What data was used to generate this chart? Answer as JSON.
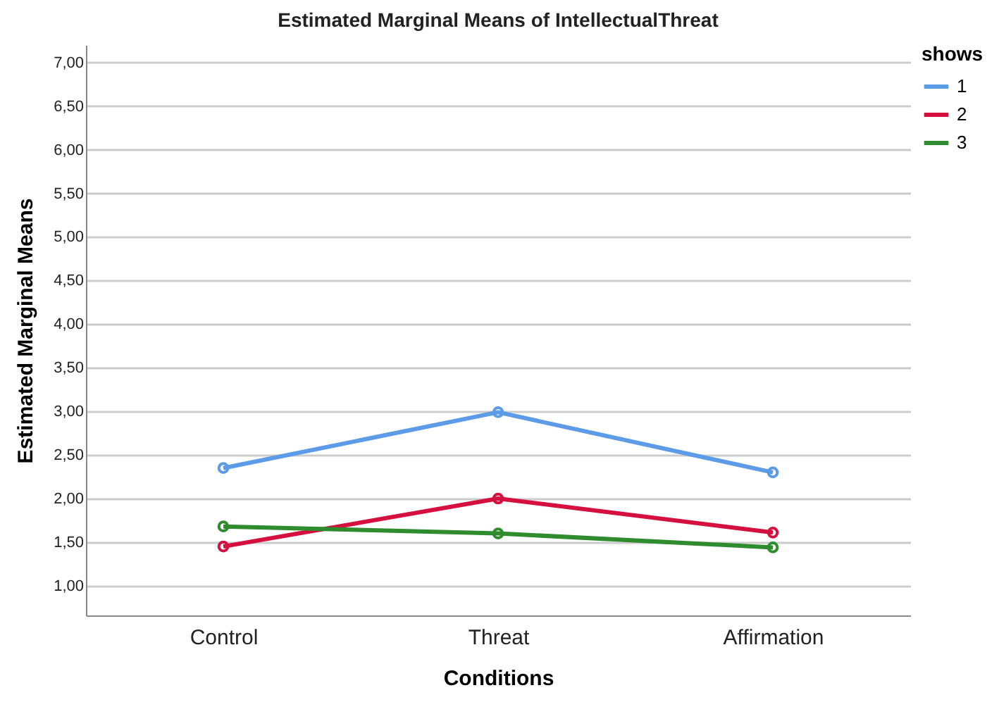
{
  "chart_data": {
    "type": "line",
    "title": "Estimated Marginal Means of IntellectualThreat",
    "xlabel": "Conditions",
    "ylabel": "Estimated Marginal Means",
    "legend_title": "shows",
    "categories": [
      "Control",
      "Threat",
      "Affirmation"
    ],
    "series": [
      {
        "name": "1",
        "color": "#5b9be8",
        "values": [
          2.35,
          2.99,
          2.3
        ]
      },
      {
        "name": "2",
        "color": "#d5103f",
        "values": [
          1.45,
          2.0,
          1.61
        ]
      },
      {
        "name": "3",
        "color": "#2e8b2e",
        "values": [
          1.68,
          1.6,
          1.44
        ]
      }
    ],
    "ylim": [
      0.66,
      7.2
    ],
    "yticks": [
      {
        "value": 1,
        "label": "1,00"
      },
      {
        "value": 1.5,
        "label": "1,50"
      },
      {
        "value": 2,
        "label": "2,00"
      },
      {
        "value": 2.5,
        "label": "2,50"
      },
      {
        "value": 3,
        "label": "3,00"
      },
      {
        "value": 3.5,
        "label": "3,50"
      },
      {
        "value": 4,
        "label": "4,00"
      },
      {
        "value": 4.5,
        "label": "4,50"
      },
      {
        "value": 5,
        "label": "5,00"
      },
      {
        "value": 5.5,
        "label": "5,50"
      },
      {
        "value": 6,
        "label": "6,00"
      },
      {
        "value": 6.5,
        "label": "6,50"
      },
      {
        "value": 7,
        "label": "7,00"
      }
    ],
    "grid": "y",
    "legend": "top right",
    "marker": "circle",
    "line_style": "solid"
  }
}
